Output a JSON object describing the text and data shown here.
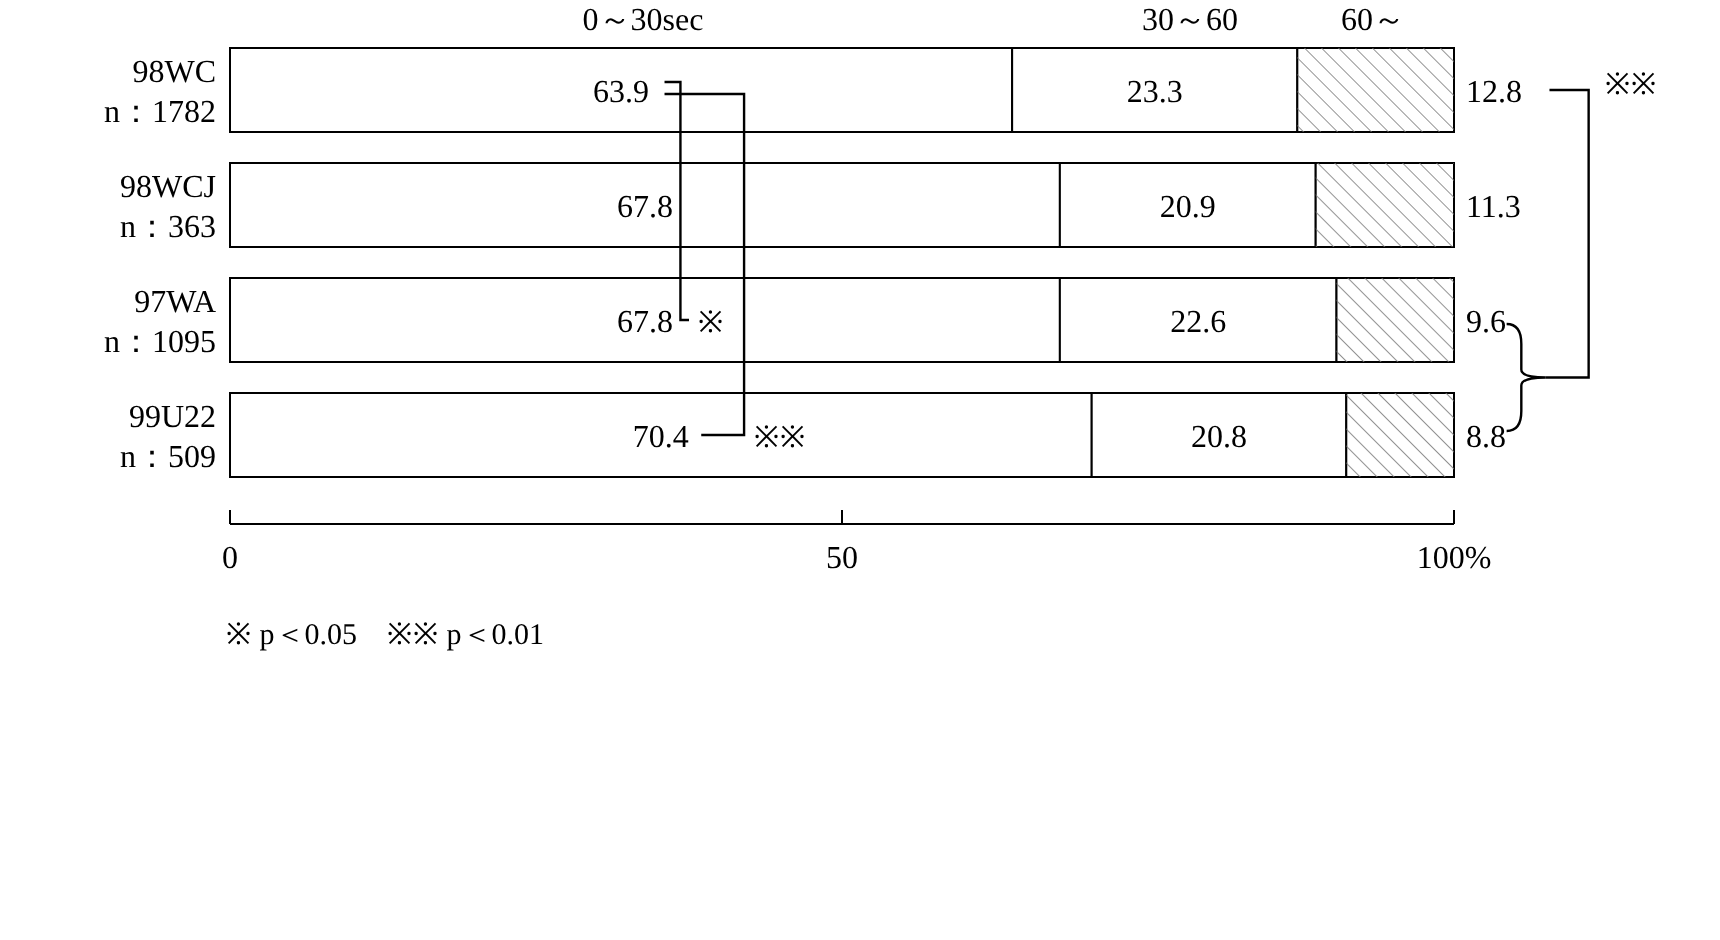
{
  "chart_data": {
    "type": "bar",
    "orientation": "horizontal",
    "stacked": true,
    "data_labels": true,
    "categories": [
      "98WC\nn：1782",
      "98WCJ\nn：363",
      "97WA\nn：1095",
      "99U22\nn：509"
    ],
    "series": [
      {
        "name": "0～30sec",
        "color": "#ffffff",
        "values": [
          63.9,
          67.8,
          67.8,
          70.4
        ]
      },
      {
        "name": "30～60",
        "color": "#ffffff",
        "values": [
          23.3,
          20.9,
          22.6,
          20.8
        ]
      },
      {
        "name": "60～",
        "color": "#ffffff",
        "values": [
          12.8,
          11.3,
          9.6,
          8.8
        ]
      }
    ],
    "xlim": [
      0,
      100
    ],
    "xticks": [
      0,
      50,
      {
        "value": 100,
        "label": "100%"
      }
    ],
    "annotations": [
      "※",
      "※※",
      "※※",
      "※ p＜0.05　※※ p＜0.01"
    ]
  }
}
